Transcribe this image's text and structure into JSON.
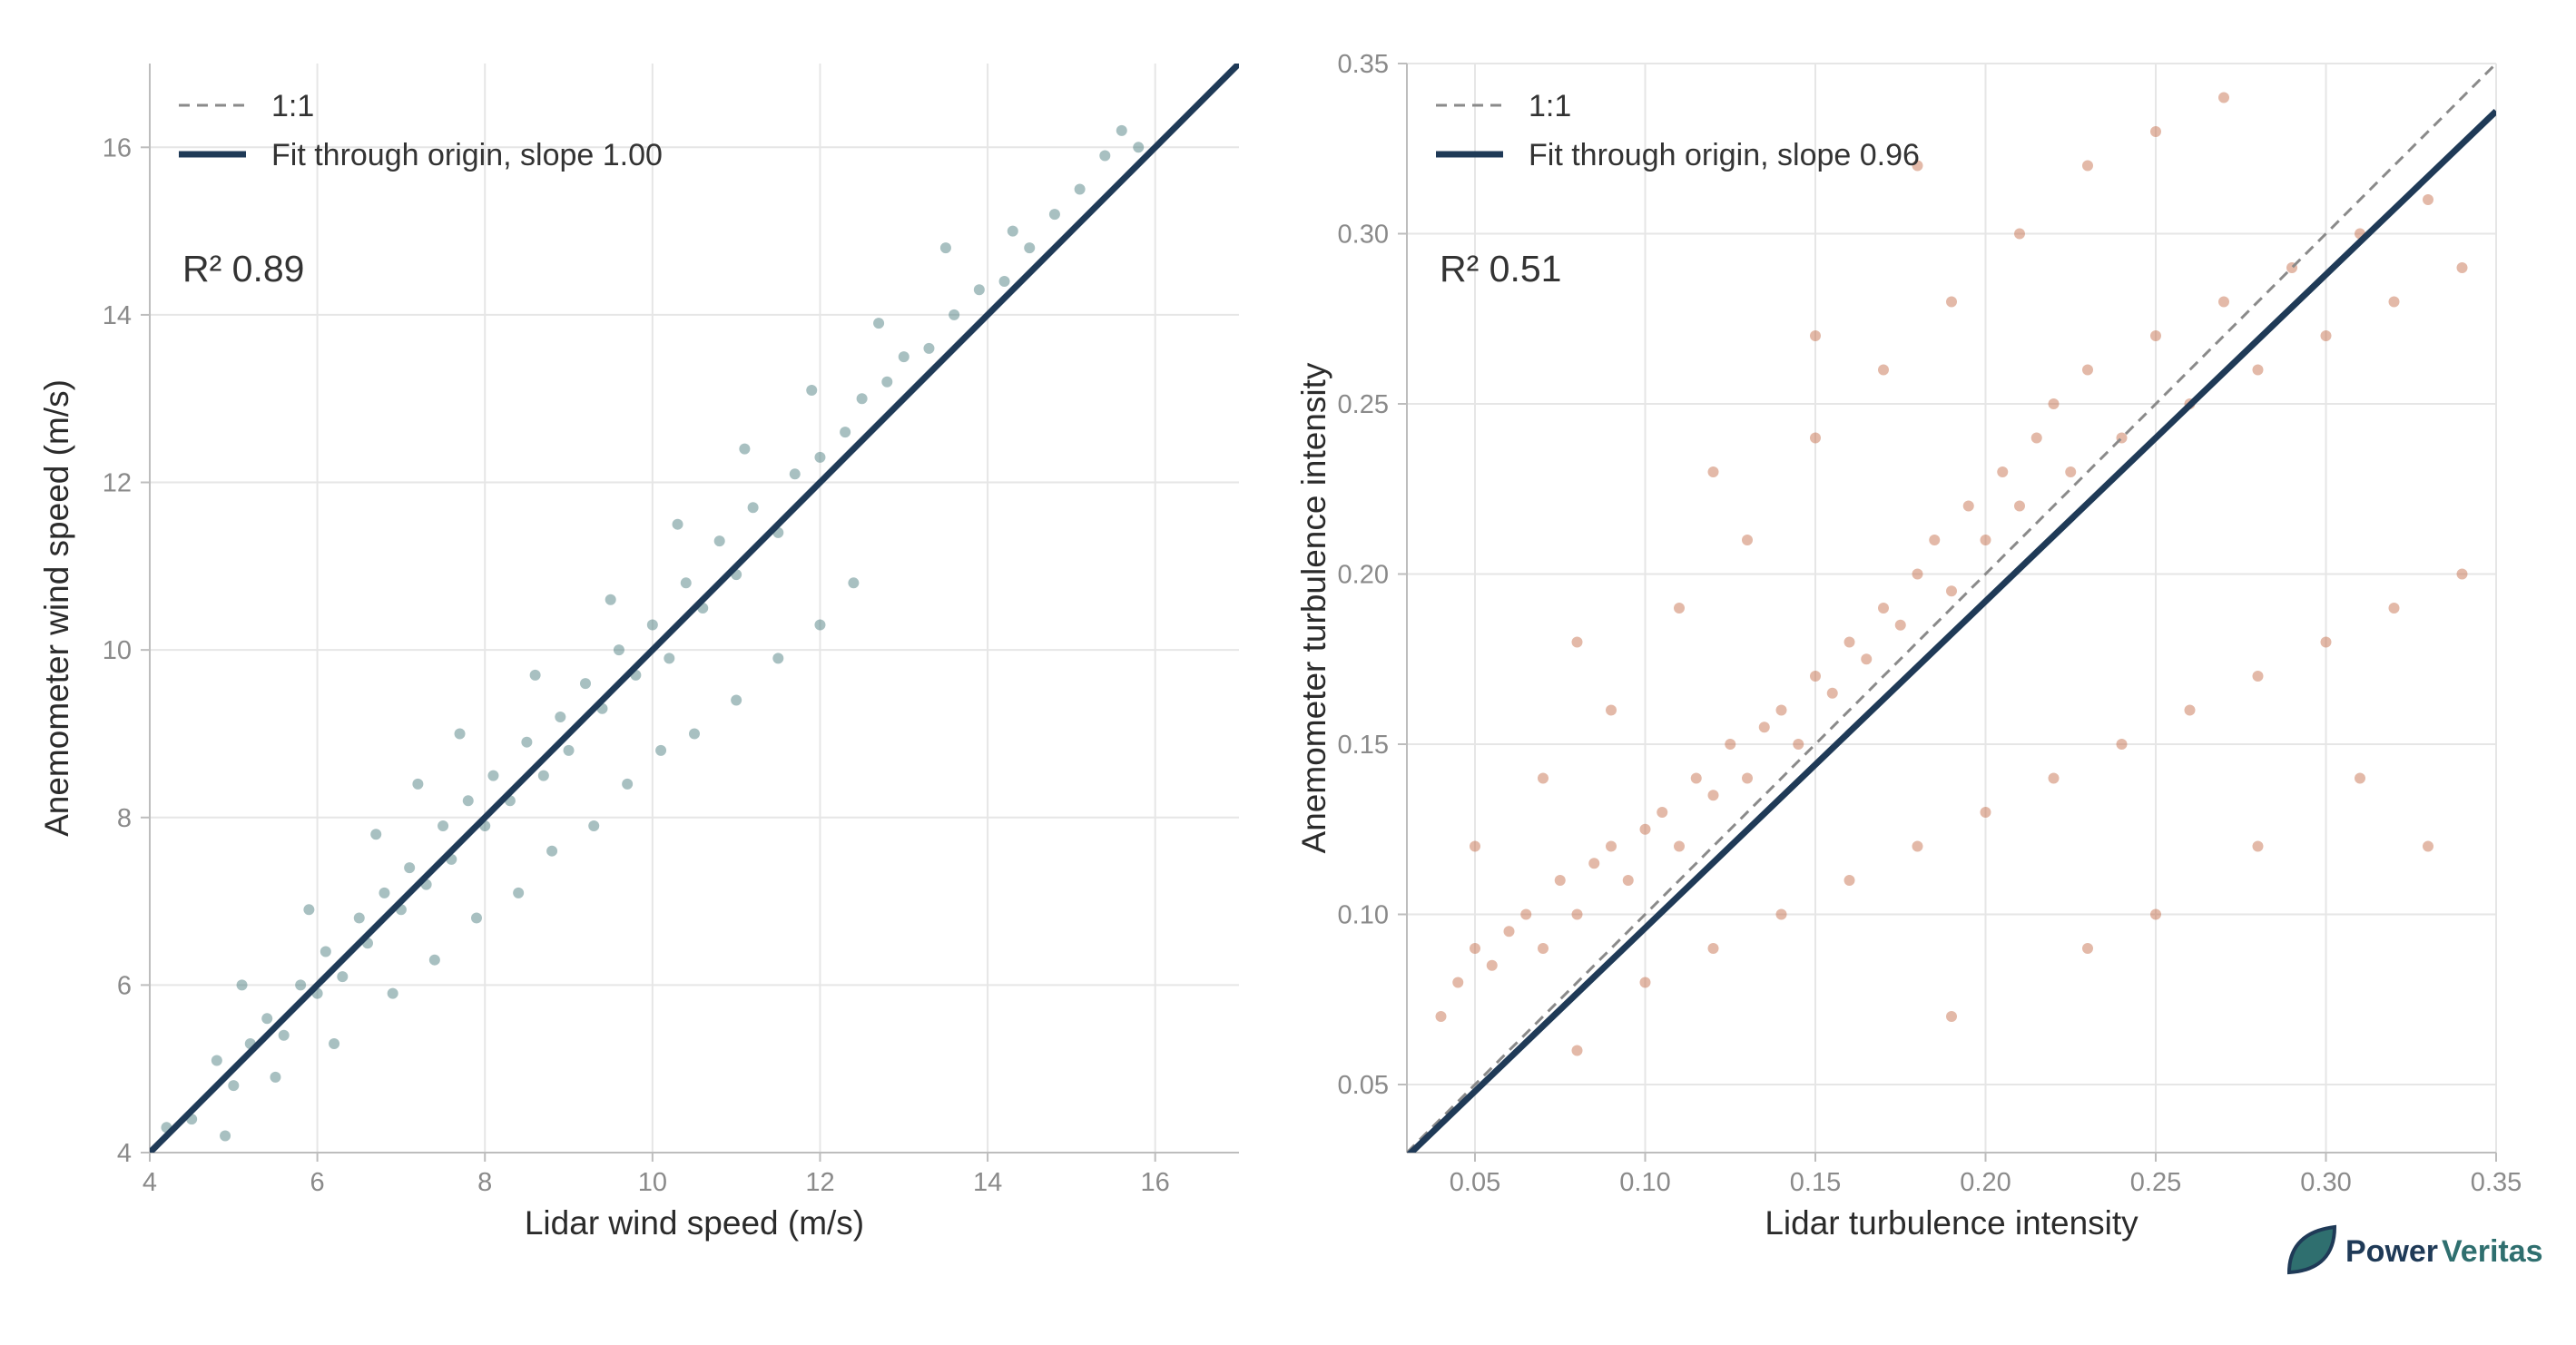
{
  "brand": {
    "name_part1": "Power",
    "name_part2": "Veritas",
    "icon": "leaf-logo-icon",
    "colors": {
      "primary": "#1f3a57",
      "secondary": "#2f6f6f"
    }
  },
  "chart_data": [
    {
      "type": "scatter",
      "title": "",
      "xlabel": "Lidar wind speed (m/s)",
      "ylabel": "Anemometer wind speed (m/s)",
      "xlim": [
        4,
        17
      ],
      "ylim": [
        4,
        17
      ],
      "xticks": [
        4,
        6,
        8,
        10,
        12,
        14,
        16
      ],
      "yticks": [
        4,
        6,
        8,
        10,
        12,
        14,
        16
      ],
      "xtick_labels": [
        "4",
        "6",
        "8",
        "10",
        "12",
        "14",
        "16"
      ],
      "ytick_labels": [
        "4",
        "6",
        "8",
        "10",
        "12",
        "14",
        "16"
      ],
      "grid": true,
      "legend_position": "top-left",
      "legend": [
        {
          "label": "1:1",
          "style": "dashed",
          "color": "#8a8a8a"
        },
        {
          "label": "Fit through origin, slope 1.00",
          "style": "solid",
          "color": "#1f3a57"
        }
      ],
      "annotation": "R² 0.89",
      "point_color": "#3d7475",
      "fit_slope": 1.0,
      "series": [
        {
          "points": [
            [
              4.2,
              4.3
            ],
            [
              4.5,
              4.4
            ],
            [
              4.8,
              5.1
            ],
            [
              5.0,
              4.8
            ],
            [
              5.2,
              5.3
            ],
            [
              5.4,
              5.6
            ],
            [
              5.6,
              5.4
            ],
            [
              5.8,
              6.0
            ],
            [
              6.0,
              5.9
            ],
            [
              6.1,
              6.4
            ],
            [
              6.3,
              6.1
            ],
            [
              6.5,
              6.8
            ],
            [
              6.6,
              6.5
            ],
            [
              6.8,
              7.1
            ],
            [
              7.0,
              6.9
            ],
            [
              7.1,
              7.4
            ],
            [
              7.3,
              7.2
            ],
            [
              7.5,
              7.9
            ],
            [
              7.6,
              7.5
            ],
            [
              7.8,
              8.2
            ],
            [
              8.0,
              7.9
            ],
            [
              8.1,
              8.5
            ],
            [
              8.3,
              8.2
            ],
            [
              8.5,
              8.9
            ],
            [
              8.7,
              8.5
            ],
            [
              8.9,
              9.2
            ],
            [
              9.0,
              8.8
            ],
            [
              9.2,
              9.6
            ],
            [
              9.4,
              9.3
            ],
            [
              9.6,
              10.0
            ],
            [
              9.8,
              9.7
            ],
            [
              10.0,
              10.3
            ],
            [
              10.2,
              9.9
            ],
            [
              10.4,
              10.8
            ],
            [
              10.6,
              10.5
            ],
            [
              10.8,
              11.3
            ],
            [
              11.0,
              10.9
            ],
            [
              11.2,
              11.7
            ],
            [
              11.5,
              11.4
            ],
            [
              11.7,
              12.1
            ],
            [
              12.0,
              12.3
            ],
            [
              12.3,
              12.6
            ],
            [
              12.5,
              13.0
            ],
            [
              12.8,
              13.2
            ],
            [
              13.0,
              13.5
            ],
            [
              13.3,
              13.6
            ],
            [
              13.6,
              14.0
            ],
            [
              13.9,
              14.3
            ],
            [
              14.2,
              14.4
            ],
            [
              14.5,
              14.8
            ],
            [
              14.8,
              15.2
            ],
            [
              15.1,
              15.5
            ],
            [
              15.4,
              15.9
            ],
            [
              15.6,
              16.2
            ],
            [
              15.8,
              16.0
            ],
            [
              4.9,
              4.2
            ],
            [
              5.5,
              4.9
            ],
            [
              6.2,
              5.3
            ],
            [
              6.9,
              5.9
            ],
            [
              7.4,
              6.3
            ],
            [
              7.9,
              6.8
            ],
            [
              8.4,
              7.1
            ],
            [
              8.8,
              7.6
            ],
            [
              9.3,
              7.9
            ],
            [
              9.7,
              8.4
            ],
            [
              10.1,
              8.8
            ],
            [
              10.5,
              9.0
            ],
            [
              11.0,
              9.4
            ],
            [
              11.5,
              9.9
            ],
            [
              12.0,
              10.3
            ],
            [
              12.4,
              10.8
            ],
            [
              5.1,
              6.0
            ],
            [
              5.9,
              6.9
            ],
            [
              6.7,
              7.8
            ],
            [
              7.2,
              8.4
            ],
            [
              7.7,
              9.0
            ],
            [
              8.6,
              9.7
            ],
            [
              9.5,
              10.6
            ],
            [
              10.3,
              11.5
            ],
            [
              11.1,
              12.4
            ],
            [
              11.9,
              13.1
            ],
            [
              12.7,
              13.9
            ],
            [
              13.5,
              14.8
            ],
            [
              14.3,
              15.0
            ]
          ]
        }
      ]
    },
    {
      "type": "scatter",
      "title": "",
      "xlabel": "Lidar turbulence intensity",
      "ylabel": "Anemometer turbulence intensity",
      "xlim": [
        0.03,
        0.35
      ],
      "ylim": [
        0.03,
        0.35
      ],
      "xticks": [
        0.05,
        0.1,
        0.15,
        0.2,
        0.25,
        0.3,
        0.35
      ],
      "yticks": [
        0.05,
        0.1,
        0.15,
        0.2,
        0.25,
        0.3,
        0.35
      ],
      "xtick_labels": [
        "0.05",
        "0.10",
        "0.15",
        "0.20",
        "0.25",
        "0.30",
        "0.35"
      ],
      "ytick_labels": [
        "0.05",
        "0.10",
        "0.15",
        "0.20",
        "0.25",
        "0.30",
        "0.35"
      ],
      "grid": true,
      "legend_position": "top-left",
      "legend": [
        {
          "label": "1:1",
          "style": "dashed",
          "color": "#8a8a8a"
        },
        {
          "label": "Fit through origin, slope 0.96",
          "style": "solid",
          "color": "#1f3a57"
        }
      ],
      "annotation": "R² 0.51",
      "point_color": "#c0643f",
      "fit_slope": 0.96,
      "series": [
        {
          "points": [
            [
              0.04,
              0.07
            ],
            [
              0.045,
              0.08
            ],
            [
              0.05,
              0.09
            ],
            [
              0.055,
              0.085
            ],
            [
              0.06,
              0.095
            ],
            [
              0.065,
              0.1
            ],
            [
              0.07,
              0.09
            ],
            [
              0.075,
              0.11
            ],
            [
              0.08,
              0.1
            ],
            [
              0.085,
              0.115
            ],
            [
              0.09,
              0.12
            ],
            [
              0.095,
              0.11
            ],
            [
              0.1,
              0.125
            ],
            [
              0.105,
              0.13
            ],
            [
              0.11,
              0.12
            ],
            [
              0.115,
              0.14
            ],
            [
              0.12,
              0.135
            ],
            [
              0.125,
              0.15
            ],
            [
              0.13,
              0.14
            ],
            [
              0.135,
              0.155
            ],
            [
              0.14,
              0.16
            ],
            [
              0.145,
              0.15
            ],
            [
              0.15,
              0.17
            ],
            [
              0.155,
              0.165
            ],
            [
              0.16,
              0.18
            ],
            [
              0.165,
              0.175
            ],
            [
              0.17,
              0.19
            ],
            [
              0.175,
              0.185
            ],
            [
              0.18,
              0.2
            ],
            [
              0.185,
              0.21
            ],
            [
              0.19,
              0.195
            ],
            [
              0.195,
              0.22
            ],
            [
              0.2,
              0.21
            ],
            [
              0.205,
              0.23
            ],
            [
              0.21,
              0.22
            ],
            [
              0.215,
              0.24
            ],
            [
              0.22,
              0.25
            ],
            [
              0.225,
              0.23
            ],
            [
              0.23,
              0.26
            ],
            [
              0.24,
              0.24
            ],
            [
              0.25,
              0.27
            ],
            [
              0.26,
              0.25
            ],
            [
              0.27,
              0.28
            ],
            [
              0.28,
              0.26
            ],
            [
              0.29,
              0.29
            ],
            [
              0.3,
              0.27
            ],
            [
              0.31,
              0.3
            ],
            [
              0.32,
              0.28
            ],
            [
              0.33,
              0.31
            ],
            [
              0.34,
              0.29
            ],
            [
              0.08,
              0.06
            ],
            [
              0.1,
              0.08
            ],
            [
              0.12,
              0.09
            ],
            [
              0.14,
              0.1
            ],
            [
              0.16,
              0.11
            ],
            [
              0.18,
              0.12
            ],
            [
              0.2,
              0.13
            ],
            [
              0.22,
              0.14
            ],
            [
              0.24,
              0.15
            ],
            [
              0.26,
              0.16
            ],
            [
              0.28,
              0.17
            ],
            [
              0.3,
              0.18
            ],
            [
              0.32,
              0.19
            ],
            [
              0.34,
              0.2
            ],
            [
              0.25,
              0.1
            ],
            [
              0.28,
              0.12
            ],
            [
              0.31,
              0.14
            ],
            [
              0.19,
              0.07
            ],
            [
              0.23,
              0.09
            ],
            [
              0.33,
              0.12
            ],
            [
              0.05,
              0.12
            ],
            [
              0.07,
              0.14
            ],
            [
              0.09,
              0.16
            ],
            [
              0.11,
              0.19
            ],
            [
              0.13,
              0.21
            ],
            [
              0.15,
              0.24
            ],
            [
              0.17,
              0.26
            ],
            [
              0.19,
              0.28
            ],
            [
              0.21,
              0.3
            ],
            [
              0.23,
              0.32
            ],
            [
              0.25,
              0.33
            ],
            [
              0.27,
              0.34
            ],
            [
              0.15,
              0.27
            ],
            [
              0.18,
              0.32
            ],
            [
              0.12,
              0.23
            ],
            [
              0.08,
              0.18
            ]
          ]
        }
      ]
    }
  ]
}
